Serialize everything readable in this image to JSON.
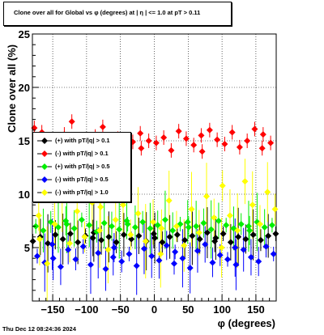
{
  "title": "Clone  over all for Global vs φ  (degrees) at |  η  | <= 1.0 at pT > 0.11",
  "timestamp": "Thu Dec 12 08:24:36 2024",
  "chart_data": {
    "type": "scatter",
    "title": "Clone  over all for Global vs φ  (degrees) at |  η  | <= 1.0 at pT > 0.11",
    "xlabel": "φ  (degrees)",
    "ylabel": "Clone  over all (%)",
    "xlim": [
      -180,
      180
    ],
    "ylim": [
      0,
      25
    ],
    "xticks": [
      -150,
      -100,
      -50,
      0,
      50,
      100,
      150
    ],
    "yticks": [
      5,
      10,
      15,
      20,
      25
    ],
    "grid": true,
    "legend_position": "left",
    "series": [
      {
        "name": "(+) with pT/|q| > 0.1",
        "color": "#000000",
        "x": [
          -175,
          -165,
          -155,
          -145,
          -135,
          -125,
          -115,
          -105,
          -95,
          -85,
          -75,
          -65,
          -55,
          -45,
          -35,
          -25,
          -15,
          -5,
          5,
          15,
          25,
          35,
          45,
          55,
          65,
          75,
          85,
          95,
          105,
          115,
          125,
          135,
          145,
          155,
          165,
          175
        ],
        "y": [
          5.6,
          6.0,
          5.4,
          6.2,
          5.8,
          6.3,
          5.5,
          6.1,
          5.9,
          6.4,
          5.7,
          6.0,
          5.5,
          6.2,
          5.8,
          6.1,
          5.6,
          6.3,
          5.9,
          5.5,
          6.0,
          6.2,
          5.7,
          6.1,
          5.8,
          6.4,
          5.6,
          5.9,
          6.3,
          5.5,
          6.0,
          5.8,
          6.2,
          5.7,
          6.1,
          6.3
        ]
      },
      {
        "name": "(-) with pT/|q| > 0.1",
        "color": "#ff0000",
        "x": [
          -175,
          -165,
          -155,
          -145,
          -135,
          -125,
          -115,
          -105,
          -95,
          -85,
          -75,
          -65,
          -55,
          -45,
          -35,
          -25,
          -15,
          -5,
          5,
          15,
          25,
          35,
          45,
          55,
          65,
          75,
          85,
          95,
          105,
          115,
          125,
          135,
          145,
          155,
          165,
          175
        ],
        "y": [
          16.2,
          15.8,
          14.7,
          14.2,
          15.6,
          16.8,
          14.0,
          15.1,
          13.9,
          15.4,
          16.3,
          14.5,
          15.2,
          13.6,
          14.9,
          15.7,
          14.3,
          15.0,
          14.8,
          15.3,
          14.1,
          15.9,
          15.2,
          14.6,
          15.5,
          14.0,
          16.0,
          15.1,
          14.7,
          15.8,
          14.4,
          15.0,
          16.1,
          14.3,
          15.6,
          14.8
        ]
      },
      {
        "name": "(+) with pT/|q| > 0.5",
        "color": "#00ee00",
        "x": [
          -175,
          -165,
          -155,
          -145,
          -135,
          -125,
          -115,
          -105,
          -95,
          -85,
          -75,
          -65,
          -55,
          -45,
          -35,
          -25,
          -15,
          -5,
          5,
          15,
          25,
          35,
          45,
          55,
          65,
          75,
          85,
          95,
          105,
          115,
          125,
          135,
          145,
          155,
          165,
          175
        ],
        "y": [
          7.0,
          6.6,
          7.4,
          6.9,
          7.5,
          7.2,
          6.8,
          7.6,
          7.1,
          6.5,
          7.3,
          7.0,
          6.7,
          7.5,
          7.2,
          6.9,
          7.4,
          6.8,
          7.1,
          7.6,
          6.6,
          7.2,
          7.4,
          6.9,
          7.0,
          7.3,
          6.7,
          7.5,
          7.1,
          6.8,
          7.2,
          7.0,
          6.6,
          7.4,
          6.9,
          7.1
        ]
      },
      {
        "name": "(-) with pT/|q| > 0.5",
        "color": "#0000ff",
        "x": [
          -175,
          -165,
          -155,
          -145,
          -135,
          -125,
          -115,
          -105,
          -95,
          -85,
          -75,
          -65,
          -55,
          -45,
          -35,
          -25,
          -15,
          -5,
          5,
          15,
          25,
          35,
          45,
          55,
          65,
          75,
          85,
          95,
          105,
          115,
          125,
          135,
          145,
          155,
          165,
          175
        ],
        "y": [
          4.2,
          3.6,
          5.3,
          4.0,
          3.2,
          4.8,
          3.9,
          5.1,
          3.4,
          4.5,
          3.0,
          4.1,
          5.0,
          3.7,
          4.4,
          3.3,
          4.9,
          4.2,
          3.8,
          5.2,
          3.5,
          4.6,
          4.0,
          3.1,
          4.7,
          5.3,
          3.6,
          4.3,
          3.9,
          5.0,
          3.4,
          4.8,
          4.1,
          3.7,
          5.1,
          4.4
        ]
      },
      {
        "name": "(-) with pT/|q| > 1.0",
        "color": "#ffff00",
        "x": [
          -175,
          -165,
          -155,
          -145,
          -135,
          -125,
          -115,
          -105,
          -95,
          -85,
          -75,
          -65,
          -55,
          -45,
          -35,
          -25,
          -15,
          -5,
          5,
          15,
          25,
          35,
          45,
          55,
          65,
          75,
          85,
          95,
          105,
          115,
          125,
          135,
          145,
          155,
          165,
          175
        ],
        "y": [
          8.0,
          5.8,
          3.5,
          7.2,
          9.6,
          5.4,
          8.4,
          6.0,
          9.2,
          6.6,
          8.8,
          4.8,
          7.6,
          9.0,
          6.2,
          8.2,
          5.6,
          7.4,
          4.4,
          6.8,
          9.4,
          7.0,
          5.2,
          8.6,
          6.4,
          9.8,
          7.8,
          5.0,
          10.8,
          8.0,
          6.6,
          11.2,
          9.0,
          7.2,
          10.2,
          8.6
        ]
      }
    ]
  }
}
